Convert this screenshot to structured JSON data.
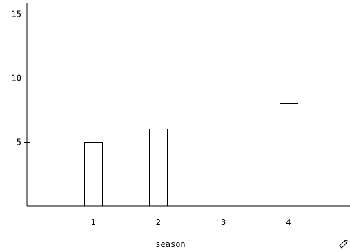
{
  "chart_data": {
    "type": "bar",
    "categories": [
      "1",
      "2",
      "3",
      "4"
    ],
    "values": [
      5,
      6,
      11,
      8
    ],
    "title": "",
    "xlabel": "season",
    "ylabel": "",
    "ylim": [
      0,
      15
    ],
    "yticks": [
      5,
      10,
      15
    ],
    "grid": false,
    "bar_fill": "#ffffff",
    "bar_stroke": "#000000"
  },
  "corner_tool": {
    "icon": "pencil-icon"
  }
}
